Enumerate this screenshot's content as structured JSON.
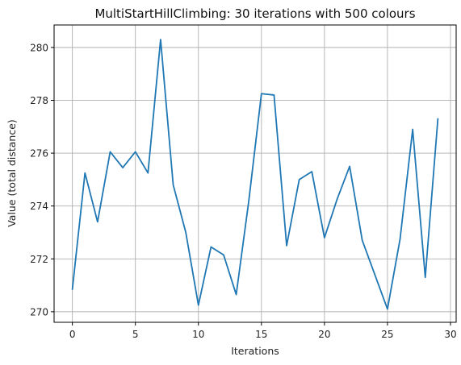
{
  "chart_data": {
    "type": "line",
    "title": "MultiStartHillClimbing: 30 iterations with 500 colours",
    "xlabel": "Iterations",
    "ylabel": "Value (total distance)",
    "xlim": [
      -1.45,
      30.45
    ],
    "ylim": [
      269.6,
      280.85
    ],
    "xticks": [
      0,
      5,
      10,
      15,
      20,
      25,
      30
    ],
    "yticks": [
      270,
      272,
      274,
      276,
      278,
      280
    ],
    "grid": true,
    "colors": {
      "line": "#1f77b4",
      "grid": "#b0b0b0"
    },
    "series": [
      {
        "x": [
          0,
          1,
          2,
          3,
          4,
          5,
          6,
          7,
          8,
          9,
          10,
          11,
          12,
          13,
          14,
          15,
          16,
          17,
          18,
          19,
          20,
          21,
          22,
          23,
          24,
          25,
          26,
          27,
          28,
          29
        ],
        "values": [
          270.85,
          275.25,
          273.4,
          276.05,
          275.45,
          276.05,
          275.25,
          280.3,
          274.8,
          273.0,
          270.25,
          272.45,
          272.15,
          270.65,
          274.2,
          278.25,
          278.2,
          272.5,
          275.0,
          275.3,
          272.8,
          274.25,
          275.5,
          272.7,
          271.4,
          270.1,
          272.75,
          276.9,
          271.3,
          277.3
        ]
      }
    ]
  }
}
